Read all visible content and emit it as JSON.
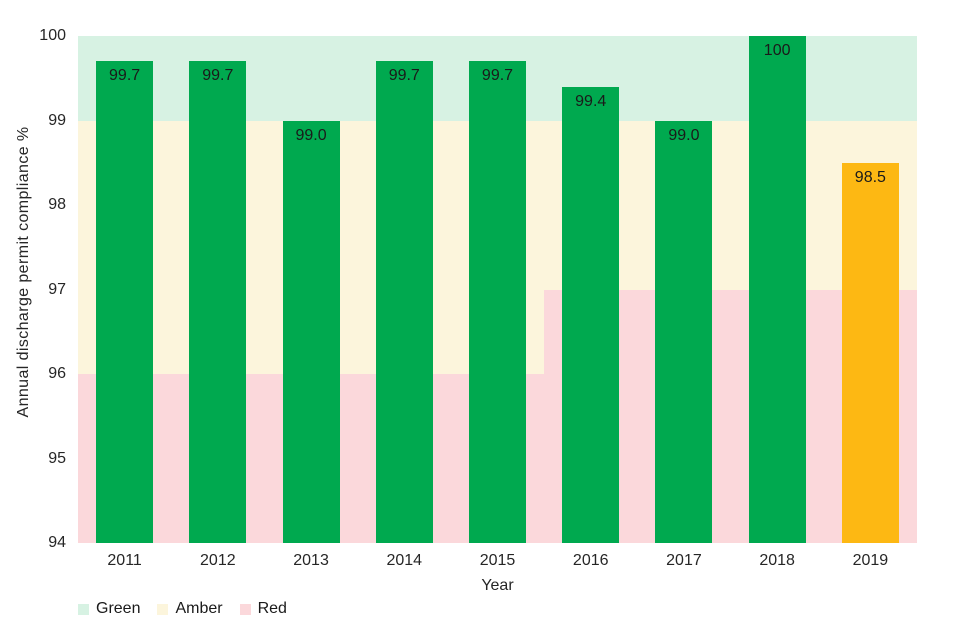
{
  "chart_data": {
    "type": "bar",
    "title": "",
    "xlabel": "Year",
    "ylabel": "Annual discharge permit compliance %",
    "categories": [
      "2011",
      "2012",
      "2013",
      "2014",
      "2015",
      "2016",
      "2017",
      "2018",
      "2019"
    ],
    "series": [
      {
        "name": "Annual discharge permit compliance %",
        "values": [
          99.7,
          99.7,
          99.0,
          99.7,
          99.7,
          99.4,
          99.0,
          100,
          98.5
        ],
        "labels": [
          "99.7",
          "99.7",
          "99.0",
          "99.7",
          "99.7",
          "99.4",
          "99.0",
          "100",
          "98.5"
        ],
        "bar_color_keys": [
          "bar_green",
          "bar_green",
          "bar_green",
          "bar_green",
          "bar_green",
          "bar_green",
          "bar_green",
          "bar_green",
          "bar_amber"
        ]
      }
    ],
    "ylim": [
      94,
      100
    ],
    "yticks": [
      "94",
      "95",
      "96",
      "97",
      "98",
      "99",
      "100"
    ],
    "grid": false,
    "legend_position": "bottom-left",
    "legend": [
      {
        "label": "Green",
        "color_key": "band_green"
      },
      {
        "label": "Amber",
        "color_key": "band_amber"
      },
      {
        "label": "Red",
        "color_key": "band_red"
      }
    ],
    "background_bands": [
      {
        "zone": "green",
        "y_from": 99,
        "y_to": 100,
        "slot_from": 0,
        "slot_to": 9,
        "color_key": "band_green"
      },
      {
        "zone": "amber",
        "y_from": 96,
        "y_to": 99,
        "slot_from": 0,
        "slot_to": 5,
        "color_key": "band_amber"
      },
      {
        "zone": "amber",
        "y_from": 97,
        "y_to": 99,
        "slot_from": 5,
        "slot_to": 9,
        "color_key": "band_amber"
      },
      {
        "zone": "red",
        "y_from": 94,
        "y_to": 96,
        "slot_from": 0,
        "slot_to": 5,
        "color_key": "band_red"
      },
      {
        "zone": "red",
        "y_from": 94,
        "y_to": 97,
        "slot_from": 5,
        "slot_to": 9,
        "color_key": "band_red"
      }
    ],
    "colors": {
      "bar_green": "#00A94F",
      "bar_amber": "#FDB813",
      "band_green": "#D7F2E3",
      "band_amber": "#FCF5DC",
      "band_red": "#FBD8DB"
    }
  }
}
